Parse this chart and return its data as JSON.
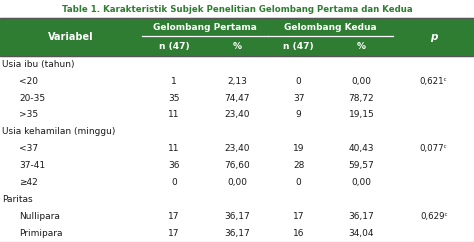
{
  "title": "Table 1. Karakteristik Subjek Penelitian Gelombang Pertama dan Kedua",
  "title_color": "#2e7d32",
  "green_header": "#2e7d32",
  "white": "#ffffff",
  "black": "#1a1a1a",
  "light_gray": "#f2f2f2",
  "group_headers": [
    "Gelombang Pertama",
    "Gelombang Kedua"
  ],
  "sub_headers": [
    "n (47)",
    "%",
    "n (47)",
    "%"
  ],
  "rows": [
    {
      "label": "Usia ibu (tahun)",
      "indent": false,
      "n1": "",
      "pct1": "",
      "n2": "",
      "pct2": "",
      "p": ""
    },
    {
      "label": "<20",
      "indent": true,
      "n1": "1",
      "pct1": "2,13",
      "n2": "0",
      "pct2": "0,00",
      "p": "0,621ᶜ"
    },
    {
      "label": "20-35",
      "indent": true,
      "n1": "35",
      "pct1": "74,47",
      "n2": "37",
      "pct2": "78,72",
      "p": ""
    },
    {
      "label": ">35",
      "indent": true,
      "n1": "11",
      "pct1": "23,40",
      "n2": "9",
      "pct2": "19,15",
      "p": ""
    },
    {
      "label": "Usia kehamilan (minggu)",
      "indent": false,
      "n1": "",
      "pct1": "",
      "n2": "",
      "pct2": "",
      "p": ""
    },
    {
      "label": "<37",
      "indent": true,
      "n1": "11",
      "pct1": "23,40",
      "n2": "19",
      "pct2": "40,43",
      "p": "0,077ᶜ"
    },
    {
      "label": "37-41",
      "indent": true,
      "n1": "36",
      "pct1": "76,60",
      "n2": "28",
      "pct2": "59,57",
      "p": ""
    },
    {
      "label": "≥42",
      "indent": true,
      "n1": "0",
      "pct1": "0,00",
      "n2": "0",
      "pct2": "0,00",
      "p": ""
    },
    {
      "label": "Paritas",
      "indent": false,
      "n1": "",
      "pct1": "",
      "n2": "",
      "pct2": "",
      "p": ""
    },
    {
      "label": "Nullipara",
      "indent": true,
      "n1": "17",
      "pct1": "36,17",
      "n2": "17",
      "pct2": "36,17",
      "p": "0,629ᶜ"
    },
    {
      "label": "Primipara",
      "indent": true,
      "n1": "17",
      "pct1": "36,17",
      "n2": "16",
      "pct2": "34,04",
      "p": ""
    }
  ],
  "col_starts": [
    0.0,
    0.3,
    0.435,
    0.565,
    0.695,
    0.83
  ],
  "col_ends": [
    0.3,
    0.435,
    0.565,
    0.695,
    0.83,
    1.0
  ]
}
